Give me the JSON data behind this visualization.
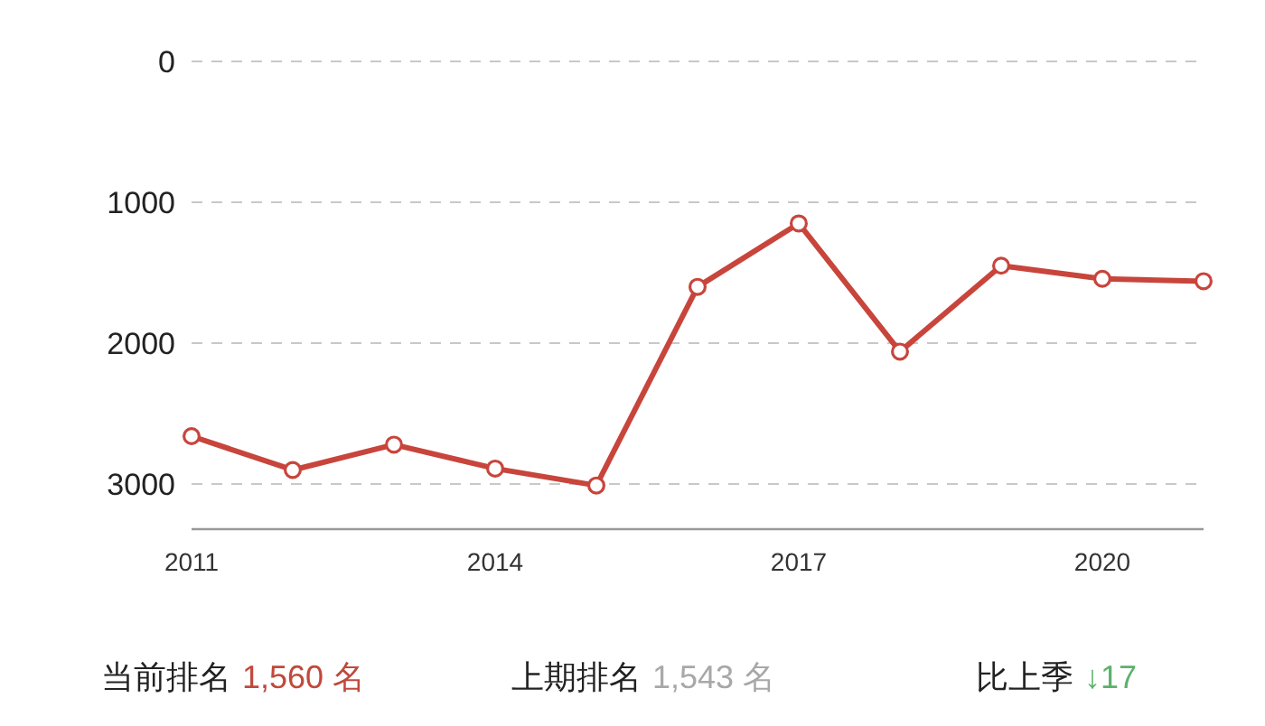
{
  "chart_data": {
    "type": "line",
    "x": [
      2011,
      2012,
      2013,
      2014,
      2015,
      2016,
      2017,
      2018,
      2019,
      2020,
      2021
    ],
    "series": [
      {
        "color": "#c8453c",
        "values": [
          2660,
          2900,
          2720,
          2890,
          3010,
          1600,
          1150,
          2060,
          1450,
          1543,
          1560
        ]
      }
    ],
    "xlim": [
      2011,
      2021
    ],
    "xticks": [
      2011,
      2014,
      2017,
      2020
    ],
    "ylim": [
      3320,
      0
    ],
    "yticks": [
      0,
      1000,
      2000,
      3000
    ],
    "grid": "y",
    "marker": "circle",
    "line_style": "solid",
    "annotations": [
      "当前排名",
      "1,560 名",
      "上期排名",
      "1,543 名",
      "比上季",
      "↓17"
    ]
  }
}
